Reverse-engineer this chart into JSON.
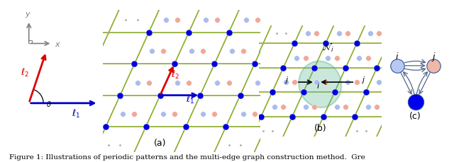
{
  "fig_width": 6.4,
  "fig_height": 2.29,
  "bg_color": "#ffffff",
  "caption": "Figure 1: Illustrations of periodic patterns and the multi-edge graph construction method.  Gre",
  "caption_fontsize": 7.5,
  "panel_labels": [
    "(a)",
    "(b)",
    "(c)"
  ],
  "panel_label_fontsize": 9,
  "lattice_color": "#8aaa2a",
  "lattice_lw": 1.2,
  "blue_dark": "#0000dd",
  "blue_light": "#aabcee",
  "pink_light": "#f0a898",
  "green_ellipse": "#66bb99",
  "arrow_red": "#dd0000",
  "arrow_blue": "#0000cc",
  "arrow_black": "#111111",
  "dot_gray": "#aaaaaa",
  "node_i_color": "#b8c8f0",
  "node_j_color": "#f0b8a8",
  "node_blue_color": "#0000ee"
}
